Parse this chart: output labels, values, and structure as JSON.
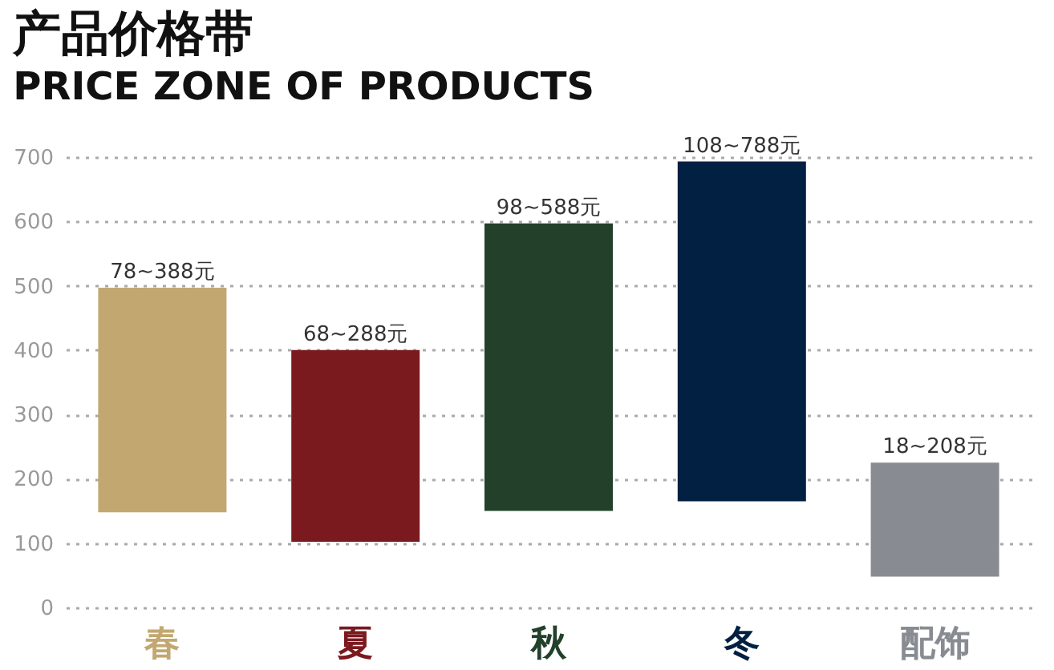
{
  "chart_data": {
    "type": "bar",
    "title": "产品价格带",
    "subtitle": "PRICE ZONE OF PRODUCTS",
    "categories": [
      "春",
      "夏",
      "秋",
      "冬",
      "配饰"
    ],
    "base": [
      148,
      102,
      150,
      165,
      48
    ],
    "values": [
      349,
      298,
      447,
      528,
      177
    ],
    "colors": [
      "#c2a870",
      "#7a1a1f",
      "#22402a",
      "#012042",
      "#888c92"
    ],
    "annotations": [
      {
        "text": "78~388元",
        "x": "春",
        "y": 497
      },
      {
        "text": "68~288元",
        "x": "夏",
        "y": 400
      },
      {
        "text": "98~588元",
        "x": "秋",
        "y": 597
      },
      {
        "text": "108~788元",
        "x": "冬",
        "y": 693
      },
      {
        "text": "18~208元",
        "x": "配饰",
        "y": 225
      }
    ],
    "ylim": [
      0,
      700
    ],
    "yticks": [
      0,
      100,
      200,
      300,
      400,
      500,
      600,
      700
    ],
    "grid": "y"
  }
}
